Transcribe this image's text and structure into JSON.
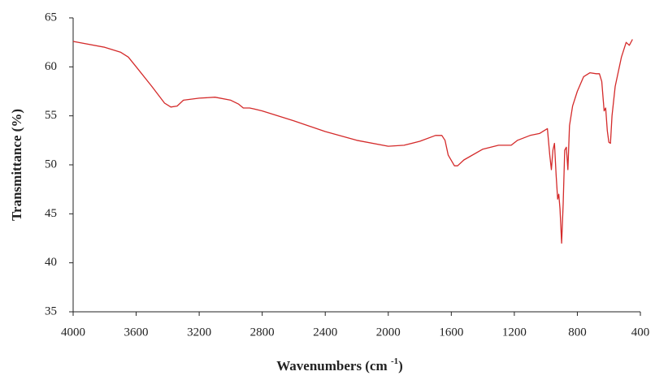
{
  "chart_data": {
    "type": "line",
    "x_label": [
      "Wavenumbers (cm ",
      "-1",
      ")"
    ],
    "y_label": "Transmittance (%)",
    "x": [
      4000,
      3800,
      3700,
      3650,
      3600,
      3500,
      3420,
      3380,
      3340,
      3300,
      3200,
      3100,
      3000,
      2950,
      2920,
      2880,
      2850,
      2800,
      2600,
      2400,
      2200,
      2000,
      1900,
      1800,
      1700,
      1660,
      1640,
      1620,
      1580,
      1560,
      1520,
      1400,
      1300,
      1220,
      1180,
      1100,
      1040,
      1010,
      990,
      975,
      965,
      955,
      945,
      935,
      925,
      918,
      910,
      900,
      890,
      880,
      870,
      860,
      850,
      830,
      800,
      760,
      720,
      680,
      660,
      645,
      630,
      620,
      610,
      600,
      590,
      580,
      560,
      520,
      490,
      470,
      450
    ],
    "series": [
      {
        "color": "#d42a2a",
        "values": [
          62.6,
          62.0,
          61.5,
          61.0,
          60.0,
          58.0,
          56.3,
          55.9,
          56.0,
          56.6,
          56.8,
          56.9,
          56.6,
          56.2,
          55.8,
          55.8,
          55.7,
          55.5,
          54.5,
          53.4,
          52.5,
          51.9,
          52.0,
          52.4,
          53.0,
          53.0,
          52.5,
          51.0,
          49.9,
          49.9,
          50.5,
          51.6,
          52.0,
          52.0,
          52.5,
          53.0,
          53.2,
          53.5,
          53.7,
          51.0,
          49.5,
          51.5,
          52.2,
          49.0,
          46.5,
          47.0,
          45.5,
          42.0,
          46.0,
          51.5,
          51.8,
          49.5,
          54.0,
          56.0,
          57.5,
          59.0,
          59.4,
          59.3,
          59.3,
          58.5,
          55.5,
          55.8,
          53.5,
          52.3,
          52.2,
          55.0,
          58.0,
          61.0,
          62.5,
          62.2,
          62.8
        ]
      }
    ],
    "xlim": [
      4000,
      400
    ],
    "xticks": [
      4000,
      3600,
      3200,
      2800,
      2400,
      2000,
      1600,
      1200,
      800,
      400
    ],
    "ylim": [
      35,
      65
    ],
    "yticks": [
      35,
      40,
      45,
      50,
      55,
      60,
      65
    ]
  }
}
